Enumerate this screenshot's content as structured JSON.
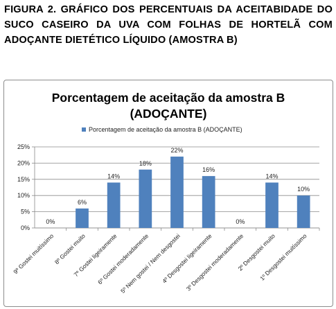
{
  "caption": "FIGURA 2. GRÁFICO DOS PERCENTUAIS DA ACEITABIDADE DO SUCO CASEIRO DA UVA COM FOLHAS DE HORTELÃ COM ADOÇANTE DIETÉTICO LÍQUIDO (AMOSTRA B)",
  "chart_data": {
    "type": "bar",
    "title_line1": "Porcentagem de aceitação da amostra B",
    "title_line2": "(ADOÇANTE)",
    "legend": "Porcentagem de aceitação da amostra B (ADOÇANTE)",
    "legend_position": "top",
    "categories": [
      "9º Gostei muitíssimo",
      "8º Gostei muito",
      "7º Gostei ligeiramente",
      "6º Gostei moderadamente",
      "5º Nem gostei / Nem desgostei",
      "4º Desgostei ligeiramente",
      "3º Desgostei moderadamente",
      "2º Desgostei muito",
      "1º Desgostei muitíssimo"
    ],
    "series": [
      {
        "name": "Porcentagem de aceitação da amostra B (ADOÇANTE)",
        "values": [
          0,
          6,
          14,
          18,
          22,
          16,
          0,
          14,
          10
        ]
      }
    ],
    "data_labels": [
      "0%",
      "6%",
      "14%",
      "18%",
      "22%",
      "16%",
      "0%",
      "14%",
      "10%"
    ],
    "y_ticks": [
      "0%",
      "5%",
      "10%",
      "15%",
      "20%",
      "25%"
    ],
    "ylim": [
      0,
      25
    ],
    "grid": true,
    "color": "#4f81bd"
  }
}
